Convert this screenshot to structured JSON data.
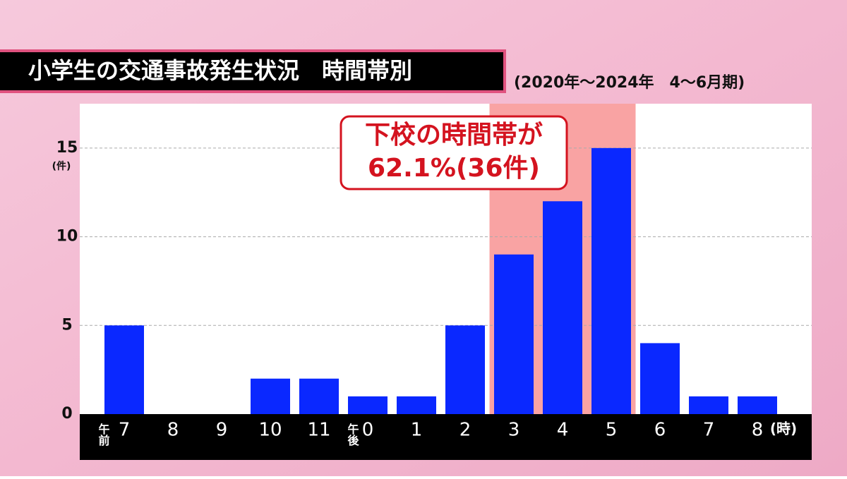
{
  "chart_data": {
    "type": "bar",
    "title": "小学生の交通事故発生状況　時間帯別",
    "subtitle": "(2020年～2024年　4～6月期)",
    "y_label": "(件)",
    "x_label": "(時)",
    "am_label": "午前",
    "pm_label": "午後",
    "annotation": [
      "下校の時間帯が",
      "62.1%(36件)"
    ],
    "categories": [
      "7",
      "8",
      "9",
      "10",
      "11",
      "0",
      "1",
      "2",
      "3",
      "4",
      "5",
      "6",
      "7",
      "8"
    ],
    "values": [
      5,
      0,
      0,
      2,
      2,
      1,
      1,
      5,
      9,
      12,
      15,
      4,
      1,
      1
    ],
    "color": "#0a28ff",
    "highlight": {
      "from": 8,
      "to": 10,
      "color": "#f9a3a3"
    },
    "ylim": [
      0,
      17.5
    ],
    "yticks": [
      0,
      5,
      10,
      15
    ],
    "grid": true
  }
}
